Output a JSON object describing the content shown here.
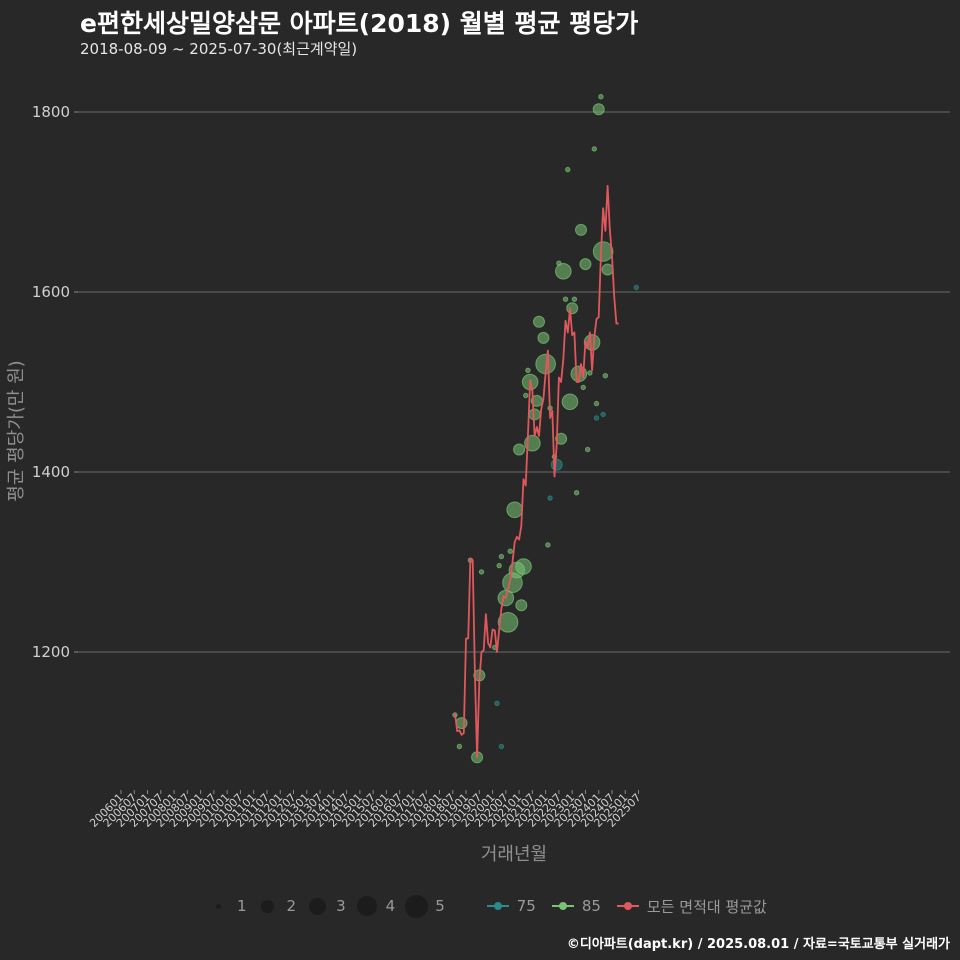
{
  "title": "e편한세상밀양삼문 아파트(2018) 월별 평균 평당가",
  "subtitle": "2018-08-09 ~ 2025-07-30(최근계약일)",
  "footer": "©디아파트(dapt.kr) / 2025.08.01 / 자료=국토교통부 실거래가",
  "legend": {
    "sizes": [
      {
        "label": "1",
        "count": 1
      },
      {
        "label": "2",
        "count": 2
      },
      {
        "label": "3",
        "count": 3
      },
      {
        "label": "4",
        "count": 4
      },
      {
        "label": "5",
        "count": 5
      }
    ],
    "series": [
      {
        "label": "75",
        "color": "#2b8a8a"
      },
      {
        "label": "85",
        "color": "#7ac274"
      },
      {
        "label": "모든 면적대 평균값",
        "color": "#e0585b"
      }
    ]
  },
  "chart_data": {
    "type": "scatter",
    "title": "e편한세상밀양삼문 아파트(2018) 월별 평균 평당가",
    "subtitle": "2018-08-09 ~ 2025-07-30(최근계약일)",
    "xlabel": "거래년월",
    "ylabel": "평균 평당가(만 원)",
    "xlim": [
      "200601",
      "202507"
    ],
    "ylim": [
      1050,
      1860
    ],
    "yticks": [
      1200,
      1400,
      1600,
      1800
    ],
    "xticks": [
      "200601",
      "200607",
      "200701",
      "200707",
      "200801",
      "200807",
      "200901",
      "200907",
      "201001",
      "201007",
      "201101",
      "201107",
      "201201",
      "201207",
      "201301",
      "201307",
      "201401",
      "201407",
      "201501",
      "201507",
      "201601",
      "201607",
      "201701",
      "201707",
      "201801",
      "201807",
      "201901",
      "201907",
      "202001",
      "202007",
      "202101",
      "202107",
      "202201",
      "202207",
      "202301",
      "202307",
      "202401",
      "202407",
      "202501",
      "202507"
    ],
    "grid": true,
    "legend_position": "bottom",
    "series": [
      {
        "name": "75",
        "color": "#2b8a8a",
        "points": [
          {
            "x": "202003",
            "y": 1143,
            "n": 1
          },
          {
            "x": "202005",
            "y": 1095,
            "n": 1
          },
          {
            "x": "202203",
            "y": 1371,
            "n": 1
          },
          {
            "x": "202206",
            "y": 1408,
            "n": 2
          },
          {
            "x": "202312",
            "y": 1460,
            "n": 1
          },
          {
            "x": "202403",
            "y": 1464,
            "n": 1
          },
          {
            "x": "202506",
            "y": 1605,
            "n": 1
          }
        ]
      },
      {
        "name": "85",
        "color": "#7ac274",
        "points": [
          {
            "x": "201808",
            "y": 1130,
            "n": 1
          },
          {
            "x": "201810",
            "y": 1095,
            "n": 1
          },
          {
            "x": "201811",
            "y": 1121,
            "n": 2
          },
          {
            "x": "201903",
            "y": 1302,
            "n": 1
          },
          {
            "x": "201906",
            "y": 1083,
            "n": 2
          },
          {
            "x": "201907",
            "y": 1174,
            "n": 2
          },
          {
            "x": "201908",
            "y": 1289,
            "n": 1
          },
          {
            "x": "202002",
            "y": 1205,
            "n": 1
          },
          {
            "x": "202004",
            "y": 1296,
            "n": 1
          },
          {
            "x": "202005",
            "y": 1306,
            "n": 1
          },
          {
            "x": "202007",
            "y": 1260,
            "n": 3
          },
          {
            "x": "202008",
            "y": 1233,
            "n": 4
          },
          {
            "x": "202009",
            "y": 1312,
            "n": 1
          },
          {
            "x": "202010",
            "y": 1277,
            "n": 4
          },
          {
            "x": "202011",
            "y": 1358,
            "n": 3
          },
          {
            "x": "202012",
            "y": 1291,
            "n": 3
          },
          {
            "x": "202101",
            "y": 1425,
            "n": 2
          },
          {
            "x": "202102",
            "y": 1252,
            "n": 2
          },
          {
            "x": "202103",
            "y": 1295,
            "n": 3
          },
          {
            "x": "202104",
            "y": 1485,
            "n": 1
          },
          {
            "x": "202105",
            "y": 1513,
            "n": 1
          },
          {
            "x": "202106",
            "y": 1500,
            "n": 3
          },
          {
            "x": "202107",
            "y": 1432,
            "n": 3
          },
          {
            "x": "202108",
            "y": 1464,
            "n": 2
          },
          {
            "x": "202109",
            "y": 1479,
            "n": 2
          },
          {
            "x": "202110",
            "y": 1567,
            "n": 2
          },
          {
            "x": "202112",
            "y": 1549,
            "n": 2
          },
          {
            "x": "202201",
            "y": 1520,
            "n": 4
          },
          {
            "x": "202202",
            "y": 1319,
            "n": 1
          },
          {
            "x": "202203",
            "y": 1471,
            "n": 1
          },
          {
            "x": "202205",
            "y": 1417,
            "n": 1
          },
          {
            "x": "202207",
            "y": 1632,
            "n": 1
          },
          {
            "x": "202208",
            "y": 1437,
            "n": 2
          },
          {
            "x": "202209",
            "y": 1623,
            "n": 3
          },
          {
            "x": "202210",
            "y": 1592,
            "n": 1
          },
          {
            "x": "202211",
            "y": 1736,
            "n": 1
          },
          {
            "x": "202212",
            "y": 1478,
            "n": 3
          },
          {
            "x": "202301",
            "y": 1582,
            "n": 2
          },
          {
            "x": "202302",
            "y": 1592,
            "n": 1
          },
          {
            "x": "202303",
            "y": 1377,
            "n": 1
          },
          {
            "x": "202304",
            "y": 1509,
            "n": 3
          },
          {
            "x": "202305",
            "y": 1669,
            "n": 2
          },
          {
            "x": "202306",
            "y": 1494,
            "n": 1
          },
          {
            "x": "202307",
            "y": 1631,
            "n": 2
          },
          {
            "x": "202308",
            "y": 1425,
            "n": 1
          },
          {
            "x": "202309",
            "y": 1510,
            "n": 1
          },
          {
            "x": "202310",
            "y": 1544,
            "n": 3
          },
          {
            "x": "202311",
            "y": 1759,
            "n": 1
          },
          {
            "x": "202312",
            "y": 1476,
            "n": 1
          },
          {
            "x": "202401",
            "y": 1803,
            "n": 2
          },
          {
            "x": "202402",
            "y": 1817,
            "n": 1
          },
          {
            "x": "202403",
            "y": 1645,
            "n": 4
          },
          {
            "x": "202404",
            "y": 1507,
            "n": 1
          },
          {
            "x": "202405",
            "y": 1625,
            "n": 2
          }
        ]
      },
      {
        "name": "모든 면적대 평균값",
        "color": "#e0585b",
        "type": "line",
        "points": [
          {
            "x": "201808",
            "y": 1132
          },
          {
            "x": "201809",
            "y": 1112
          },
          {
            "x": "201810",
            "y": 1113
          },
          {
            "x": "201811",
            "y": 1108
          },
          {
            "x": "201812",
            "y": 1110
          },
          {
            "x": "201901",
            "y": 1215
          },
          {
            "x": "201902",
            "y": 1215
          },
          {
            "x": "201903",
            "y": 1304
          },
          {
            "x": "201904",
            "y": 1302
          },
          {
            "x": "201905",
            "y": 1176
          },
          {
            "x": "201906",
            "y": 1083
          },
          {
            "x": "201907",
            "y": 1167
          },
          {
            "x": "201908",
            "y": 1200
          },
          {
            "x": "201909",
            "y": 1202
          },
          {
            "x": "201910",
            "y": 1242
          },
          {
            "x": "201911",
            "y": 1210
          },
          {
            "x": "201912",
            "y": 1205
          },
          {
            "x": "202001",
            "y": 1225
          },
          {
            "x": "202002",
            "y": 1224
          },
          {
            "x": "202003",
            "y": 1200
          },
          {
            "x": "202004",
            "y": 1225
          },
          {
            "x": "202005",
            "y": 1248
          },
          {
            "x": "202006",
            "y": 1262
          },
          {
            "x": "202007",
            "y": 1260
          },
          {
            "x": "202008",
            "y": 1270
          },
          {
            "x": "202009",
            "y": 1280
          },
          {
            "x": "202010",
            "y": 1300
          },
          {
            "x": "202011",
            "y": 1322
          },
          {
            "x": "202012",
            "y": 1328
          },
          {
            "x": "202101",
            "y": 1325
          },
          {
            "x": "202102",
            "y": 1340
          },
          {
            "x": "202103",
            "y": 1392
          },
          {
            "x": "202104",
            "y": 1385
          },
          {
            "x": "202105",
            "y": 1440
          },
          {
            "x": "202106",
            "y": 1502
          },
          {
            "x": "202107",
            "y": 1490
          },
          {
            "x": "202108",
            "y": 1440
          },
          {
            "x": "202109",
            "y": 1450
          },
          {
            "x": "202110",
            "y": 1440
          },
          {
            "x": "202111",
            "y": 1470
          },
          {
            "x": "202112",
            "y": 1481
          },
          {
            "x": "202201",
            "y": 1510
          },
          {
            "x": "202202",
            "y": 1535
          },
          {
            "x": "202203",
            "y": 1460
          },
          {
            "x": "202204",
            "y": 1468
          },
          {
            "x": "202205",
            "y": 1395
          },
          {
            "x": "202206",
            "y": 1430
          },
          {
            "x": "202207",
            "y": 1505
          },
          {
            "x": "202208",
            "y": 1500
          },
          {
            "x": "202209",
            "y": 1525
          },
          {
            "x": "202210",
            "y": 1568
          },
          {
            "x": "202211",
            "y": 1555
          },
          {
            "x": "202212",
            "y": 1582
          },
          {
            "x": "202301",
            "y": 1552
          },
          {
            "x": "202302",
            "y": 1555
          },
          {
            "x": "202303",
            "y": 1500
          },
          {
            "x": "202304",
            "y": 1500
          },
          {
            "x": "202305",
            "y": 1520
          },
          {
            "x": "202306",
            "y": 1505
          },
          {
            "x": "202307",
            "y": 1545
          },
          {
            "x": "202308",
            "y": 1538
          },
          {
            "x": "202309",
            "y": 1555
          },
          {
            "x": "202310",
            "y": 1513
          },
          {
            "x": "202311",
            "y": 1550
          },
          {
            "x": "202312",
            "y": 1570
          },
          {
            "x": "202401",
            "y": 1572
          },
          {
            "x": "202402",
            "y": 1640
          },
          {
            "x": "202403",
            "y": 1693
          },
          {
            "x": "202404",
            "y": 1668
          },
          {
            "x": "202405",
            "y": 1718
          },
          {
            "x": "202406",
            "y": 1670
          },
          {
            "x": "202407",
            "y": 1640
          },
          {
            "x": "202408",
            "y": 1595
          },
          {
            "x": "202409",
            "y": 1565
          },
          {
            "x": "202410",
            "y": 1565
          }
        ]
      }
    ]
  }
}
